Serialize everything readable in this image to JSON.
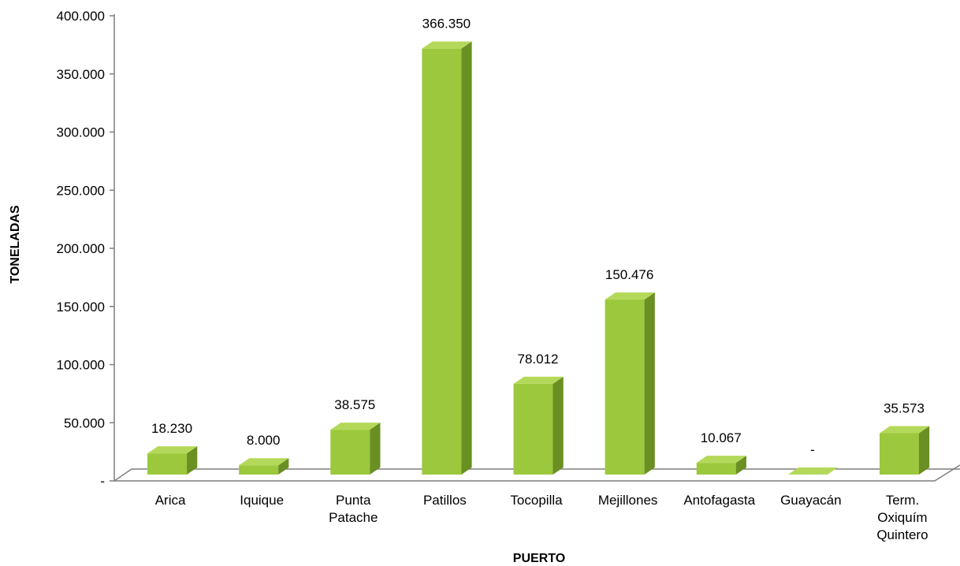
{
  "chart_data": {
    "type": "bar",
    "title": "",
    "xlabel": "PUERTO",
    "ylabel": "TONELADAS",
    "ylim": [
      0,
      400000
    ],
    "y_ticks": [
      {
        "value": 0,
        "label": "-"
      },
      {
        "value": 50000,
        "label": "50.000"
      },
      {
        "value": 100000,
        "label": "100.000"
      },
      {
        "value": 150000,
        "label": "150.000"
      },
      {
        "value": 200000,
        "label": "200.000"
      },
      {
        "value": 250000,
        "label": "250.000"
      },
      {
        "value": 300000,
        "label": "300.000"
      },
      {
        "value": 350000,
        "label": "350.000"
      },
      {
        "value": 400000,
        "label": "400.000"
      }
    ],
    "categories": [
      [
        "Arica"
      ],
      [
        "Iquique"
      ],
      [
        "Punta",
        "Patache"
      ],
      [
        "Patillos"
      ],
      [
        "Tocopilla"
      ],
      [
        "Mejillones"
      ],
      [
        "Antofagasta"
      ],
      [
        "Guayacán"
      ],
      [
        "Term.",
        "Oxiquím",
        "Quintero"
      ]
    ],
    "values": [
      18230,
      8000,
      38575,
      366350,
      78012,
      150476,
      10067,
      0,
      35573
    ],
    "value_labels": [
      "18.230",
      "8.000",
      "38.575",
      "366.350",
      "78.012",
      "150.476",
      "10.067",
      "-",
      "35.573"
    ],
    "bar_style": "3d-column",
    "colors": {
      "bar_front": "#9bc83c",
      "bar_top": "#b4d95a",
      "bar_side": "#6a8f22",
      "axis": "#7f7f7f"
    },
    "grid": false,
    "legend": "none"
  }
}
